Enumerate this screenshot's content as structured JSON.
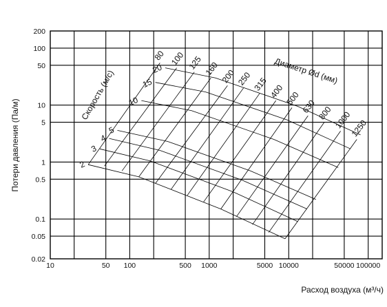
{
  "chart_data": {
    "type": "line",
    "title": "",
    "xlabel": "Расход воздуха (м³/ч)",
    "ylabel": "Потери давления (Па/м)",
    "xscale": "log",
    "yscale": "log",
    "xlim": [
      10,
      150000
    ],
    "ylim": [
      0.02,
      200
    ],
    "grid": true,
    "x_ticks": [
      {
        "value": 10,
        "label": "10"
      },
      {
        "value": 50,
        "label": "50"
      },
      {
        "value": 100,
        "label": "100"
      },
      {
        "value": 500,
        "label": "500"
      },
      {
        "value": 1000,
        "label": "1000"
      },
      {
        "value": 5000,
        "label": "5000"
      },
      {
        "value": 10000,
        "label": "10000"
      },
      {
        "value": 50000,
        "label": "50000"
      },
      {
        "value": 100000,
        "label": "100000"
      }
    ],
    "x_grid": [
      20,
      200,
      2000,
      20000
    ],
    "y_ticks": [
      {
        "value": 0.02,
        "label": "0.02"
      },
      {
        "value": 0.05,
        "label": "0.05"
      },
      {
        "value": 0.1,
        "label": "0.1"
      },
      {
        "value": 0.5,
        "label": "0.5"
      },
      {
        "value": 1,
        "label": "1"
      },
      {
        "value": 5,
        "label": "5"
      },
      {
        "value": 10,
        "label": "10"
      },
      {
        "value": 50,
        "label": "50"
      },
      {
        "value": 100,
        "label": "100"
      },
      {
        "value": 200,
        "label": "200"
      }
    ],
    "diameter_title": "Диаметр Ød (мм)",
    "velocity_title": "Скорость (м/с)",
    "diameters": [
      {
        "label": "80",
        "points": [
          [
            240,
            55
          ],
          [
            30,
            0.9
          ]
        ]
      },
      {
        "label": "100",
        "points": [
          [
            390,
            45
          ],
          [
            48,
            0.85
          ]
        ]
      },
      {
        "label": "125",
        "points": [
          [
            650,
            38
          ],
          [
            80,
            0.7
          ]
        ]
      },
      {
        "label": "160",
        "points": [
          [
            1050,
            30
          ],
          [
            130,
            0.55
          ]
        ]
      },
      {
        "label": "200",
        "points": [
          [
            1700,
            22
          ],
          [
            210,
            0.42
          ]
        ]
      },
      {
        "label": "250",
        "points": [
          [
            2700,
            20
          ],
          [
            330,
            0.33
          ]
        ]
      },
      {
        "label": "315",
        "points": [
          [
            4300,
            16
          ],
          [
            530,
            0.26
          ]
        ]
      },
      {
        "label": "400",
        "points": [
          [
            6900,
            12
          ],
          [
            850,
            0.2
          ]
        ]
      },
      {
        "label": "500",
        "points": [
          [
            11000,
            9
          ],
          [
            1400,
            0.15
          ]
        ]
      },
      {
        "label": "630",
        "points": [
          [
            17500,
            6.5
          ],
          [
            2200,
            0.11
          ]
        ]
      },
      {
        "label": "800",
        "points": [
          [
            28000,
            5
          ],
          [
            3500,
            0.08
          ]
        ]
      },
      {
        "label": "1000",
        "points": [
          [
            45000,
            3.5
          ],
          [
            5600,
            0.058
          ]
        ]
      },
      {
        "label": "1250",
        "points": [
          [
            72000,
            2.5
          ],
          [
            9000,
            0.045
          ]
        ]
      }
    ],
    "velocities": [
      {
        "label": "2",
        "points": [
          [
            30,
            0.9
          ],
          [
            130,
            0.55
          ],
          [
            1400,
            0.15
          ],
          [
            9000,
            0.045
          ]
        ]
      },
      {
        "label": "3",
        "points": [
          [
            42,
            1.7
          ],
          [
            180,
            1.05
          ],
          [
            2000,
            0.3
          ],
          [
            13000,
            0.09
          ]
        ]
      },
      {
        "label": "4",
        "points": [
          [
            55,
            2.6
          ],
          [
            240,
            1.6
          ],
          [
            2600,
            0.48
          ],
          [
            17000,
            0.15
          ]
        ]
      },
      {
        "label": "5",
        "points": [
          [
            70,
            3.6
          ],
          [
            300,
            2.3
          ],
          [
            3300,
            0.7
          ],
          [
            22000,
            0.22
          ]
        ]
      },
      {
        "label": "10",
        "points": [
          [
            140,
            12
          ],
          [
            600,
            8
          ],
          [
            6500,
            2.5
          ],
          [
            42000,
            0.8
          ]
        ]
      },
      {
        "label": "15",
        "points": [
          [
            210,
            25
          ],
          [
            900,
            17
          ],
          [
            9500,
            5.5
          ],
          [
            60000,
            1.7
          ]
        ]
      },
      {
        "label": "20",
        "points": [
          [
            280,
            45
          ],
          [
            1200,
            30
          ],
          [
            13000,
            9.5
          ],
          [
            80000,
            3
          ]
        ]
      }
    ]
  }
}
